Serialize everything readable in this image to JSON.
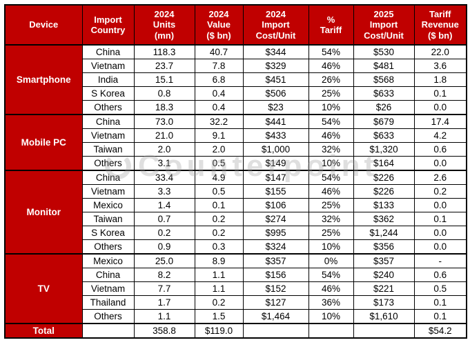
{
  "watermark": {
    "text": "Counterpoint"
  },
  "chart_data": {
    "type": "table",
    "title": "Device import tariffs table",
    "header_labels": [
      "Device",
      "Import\nCountry",
      "2024\nUnits\n(mn)",
      "2024\nValue\n($ bn)",
      "2024\nImport\nCost/Unit",
      "%\nTariff",
      "2025\nImport\nCost/Unit",
      "Tariff\nRevenue\n($ bn)"
    ],
    "columns": [
      "Device",
      "Import Country",
      "2024 Units (mn)",
      "2024 Value ($ bn)",
      "2024 Import Cost/Unit",
      "% Tariff",
      "2025 Import Cost/Unit",
      "Tariff Revenue ($ bn)"
    ],
    "accent_color": "#C00000",
    "groups": [
      {
        "device": "Smartphone",
        "rows": [
          {
            "country": "China",
            "units": "118.3",
            "value": "40.7",
            "cost2024": "$344",
            "tariff": "54%",
            "cost2025": "$530",
            "revenue": "22.0"
          },
          {
            "country": "Vietnam",
            "units": "23.7",
            "value": "7.8",
            "cost2024": "$329",
            "tariff": "46%",
            "cost2025": "$481",
            "revenue": "3.6"
          },
          {
            "country": "India",
            "units": "15.1",
            "value": "6.8",
            "cost2024": "$451",
            "tariff": "26%",
            "cost2025": "$568",
            "revenue": "1.8"
          },
          {
            "country": "S Korea",
            "units": "0.8",
            "value": "0.4",
            "cost2024": "$506",
            "tariff": "25%",
            "cost2025": "$633",
            "revenue": "0.1"
          },
          {
            "country": "Others",
            "units": "18.3",
            "value": "0.4",
            "cost2024": "$23",
            "tariff": "10%",
            "cost2025": "$26",
            "revenue": "0.0"
          }
        ]
      },
      {
        "device": "Mobile PC",
        "rows": [
          {
            "country": "China",
            "units": "73.0",
            "value": "32.2",
            "cost2024": "$441",
            "tariff": "54%",
            "cost2025": "$679",
            "revenue": "17.4"
          },
          {
            "country": "Vietnam",
            "units": "21.0",
            "value": "9.1",
            "cost2024": "$433",
            "tariff": "46%",
            "cost2025": "$633",
            "revenue": "4.2"
          },
          {
            "country": "Taiwan",
            "units": "2.0",
            "value": "2.0",
            "cost2024": "$1,000",
            "tariff": "32%",
            "cost2025": "$1,320",
            "revenue": "0.6"
          },
          {
            "country": "Others",
            "units": "3.1",
            "value": "0.5",
            "cost2024": "$149",
            "tariff": "10%",
            "cost2025": "$164",
            "revenue": "0.0"
          }
        ]
      },
      {
        "device": "Monitor",
        "rows": [
          {
            "country": "China",
            "units": "33.4",
            "value": "4.9",
            "cost2024": "$147",
            "tariff": "54%",
            "cost2025": "$226",
            "revenue": "2.6"
          },
          {
            "country": "Vietnam",
            "units": "3.3",
            "value": "0.5",
            "cost2024": "$155",
            "tariff": "46%",
            "cost2025": "$226",
            "revenue": "0.2"
          },
          {
            "country": "Mexico",
            "units": "1.4",
            "value": "0.1",
            "cost2024": "$106",
            "tariff": "25%",
            "cost2025": "$133",
            "revenue": "0.0"
          },
          {
            "country": "Taiwan",
            "units": "0.7",
            "value": "0.2",
            "cost2024": "$274",
            "tariff": "32%",
            "cost2025": "$362",
            "revenue": "0.1"
          },
          {
            "country": "S Korea",
            "units": "0.2",
            "value": "0.2",
            "cost2024": "$995",
            "tariff": "25%",
            "cost2025": "$1,244",
            "revenue": "0.0"
          },
          {
            "country": "Others",
            "units": "0.9",
            "value": "0.3",
            "cost2024": "$324",
            "tariff": "10%",
            "cost2025": "$356",
            "revenue": "0.0"
          }
        ]
      },
      {
        "device": "TV",
        "rows": [
          {
            "country": "Mexico",
            "units": "25.0",
            "value": "8.9",
            "cost2024": "$357",
            "tariff": "0%",
            "cost2025": "$357",
            "revenue": "-"
          },
          {
            "country": "China",
            "units": "8.2",
            "value": "1.1",
            "cost2024": "$156",
            "tariff": "54%",
            "cost2025": "$240",
            "revenue": "0.6"
          },
          {
            "country": "Vietnam",
            "units": "7.7",
            "value": "1.1",
            "cost2024": "$152",
            "tariff": "46%",
            "cost2025": "$221",
            "revenue": "0.5"
          },
          {
            "country": "Thailand",
            "units": "1.7",
            "value": "0.2",
            "cost2024": "$127",
            "tariff": "36%",
            "cost2025": "$173",
            "revenue": "0.1"
          },
          {
            "country": "Others",
            "units": "1.1",
            "value": "1.5",
            "cost2024": "$1,464",
            "tariff": "10%",
            "cost2025": "$1,610",
            "revenue": "0.1"
          }
        ]
      }
    ],
    "total": {
      "label": "Total",
      "country": "",
      "units": "358.8",
      "value": "$119.0",
      "cost2024": "",
      "tariff": "",
      "cost2025": "",
      "revenue": "$54.2"
    }
  }
}
